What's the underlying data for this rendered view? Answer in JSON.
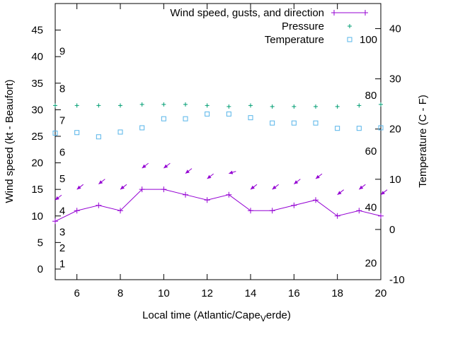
{
  "chart_data": {
    "type": "line",
    "title": "",
    "xlabel": "Local time (Atlantic/Cape",
    "xlabel_sub": "V",
    "xlabel_tail": "erde)",
    "ylabel": "Wind speed (kt - Beaufort)",
    "y2label": "Temperature (C - F)",
    "xlim": [
      5,
      20
    ],
    "ylim": [
      -2,
      50
    ],
    "y2lim": [
      -10,
      45
    ],
    "x_ticks": [
      6,
      8,
      10,
      12,
      14,
      16,
      18,
      20
    ],
    "y_ticks": [
      0,
      5,
      10,
      15,
      20,
      25,
      30,
      35,
      40,
      45
    ],
    "y2_ticks": [
      -10,
      0,
      10,
      20,
      30,
      40
    ],
    "grid": false,
    "legend": [
      {
        "key": "wind",
        "label": "Wind speed, gusts, and direction",
        "color": "#9400d3"
      },
      {
        "key": "pressure",
        "label": "Pressure",
        "color": "#009e73"
      },
      {
        "key": "temperature",
        "label": "Temperature",
        "color": "#56b4e9"
      }
    ],
    "legend_extra": "100",
    "x": [
      5,
      6,
      7,
      8,
      9,
      10,
      11,
      12,
      13,
      14,
      15,
      16,
      17,
      18,
      19,
      20
    ],
    "series": [
      {
        "name": "Wind speed",
        "axis": "y",
        "color": "#9400d3",
        "values": [
          9,
          11,
          12,
          11,
          15,
          15,
          14,
          13,
          14,
          11,
          11,
          12,
          13,
          10,
          11,
          10
        ]
      },
      {
        "name": "Wind direction arrows (plotted at wind speed + 4)",
        "axis": "y",
        "color": "#9400d3",
        "values": [
          13,
          15,
          16,
          15,
          19,
          19,
          18,
          17,
          18,
          15,
          15,
          16,
          17,
          14,
          15,
          14
        ],
        "arrow_directions": [
          "from-NE",
          "from-NE",
          "from-NE",
          "from-NE",
          "from-NE",
          "from-NE",
          "from-NE",
          "from-NE",
          "from-E",
          "from-NE",
          "from-NE",
          "from-NE",
          "from-NE",
          "from-NE",
          "from-NE",
          "from-NE"
        ]
      },
      {
        "name": "Pressure",
        "axis": "y",
        "color": "#009e73",
        "values": [
          30.8,
          30.8,
          30.8,
          30.8,
          31.0,
          31.0,
          31.0,
          30.8,
          30.6,
          30.8,
          30.6,
          30.6,
          30.6,
          30.6,
          30.8,
          31.0
        ]
      },
      {
        "name": "Temperature",
        "axis": "y",
        "color": "#56b4e9",
        "values": [
          25.6,
          25.7,
          24.9,
          25.8,
          26.6,
          28.3,
          28.3,
          29.2,
          29.2,
          28.5,
          27.5,
          27.5,
          27.5,
          26.5,
          26.5,
          26.6
        ]
      }
    ],
    "beaufort_labels": [
      {
        "label": "1",
        "y": 1.0
      },
      {
        "label": "2",
        "y": 4.0
      },
      {
        "label": "3",
        "y": 7.0
      },
      {
        "label": "4",
        "y": 11.0
      },
      {
        "label": "5",
        "y": 17.0
      },
      {
        "label": "6",
        "y": 22.0
      },
      {
        "label": "7",
        "y": 28.0
      },
      {
        "label": "8",
        "y": 34.0
      },
      {
        "label": "9",
        "y": 41.0
      }
    ],
    "fahrenheit_labels": [
      {
        "label": "20",
        "c": -6.7
      },
      {
        "label": "40",
        "c": 4.4
      },
      {
        "label": "60",
        "c": 15.6
      },
      {
        "label": "80",
        "c": 26.7
      }
    ]
  }
}
